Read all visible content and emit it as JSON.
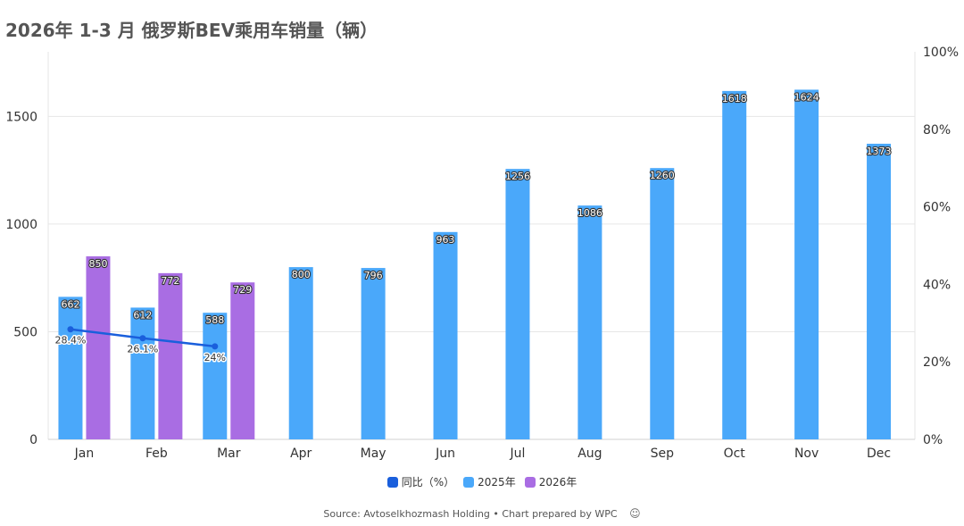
{
  "chart_data": {
    "type": "bar",
    "title": "2026年 1-3 月 俄罗斯BEV乘用车销量（辆）",
    "categories": [
      "Jan",
      "Feb",
      "Mar",
      "Apr",
      "May",
      "Jun",
      "Jul",
      "Aug",
      "Sep",
      "Oct",
      "Nov",
      "Dec"
    ],
    "y_ticks": [
      "0",
      "500",
      "1000",
      "1500"
    ],
    "y2_ticks": [
      "0%",
      "20%",
      "40%",
      "60%",
      "80%",
      "100%"
    ],
    "ylim": [
      0,
      1800
    ],
    "y2lim": [
      0,
      100
    ],
    "grid": true,
    "legend_position": "bottom-center",
    "series": [
      {
        "name": "同比（%）",
        "type": "line",
        "axis": "right",
        "color": "#1a5fdc",
        "values": [
          28.4,
          26.1,
          24,
          null,
          null,
          null,
          null,
          null,
          null,
          null,
          null,
          null
        ],
        "labels": [
          "28.4%",
          "26.1%",
          "24%",
          null,
          null,
          null,
          null,
          null,
          null,
          null,
          null,
          null
        ]
      },
      {
        "name": "2025年",
        "type": "bar",
        "axis": "left",
        "color": "#4aa8fa",
        "values": [
          662,
          612,
          588,
          800,
          796,
          963,
          1256,
          1086,
          1260,
          1618,
          1624,
          1373
        ],
        "labels": [
          "662",
          "612",
          "588",
          "800",
          "796",
          "963",
          "1256",
          "1086",
          "1260",
          "1618",
          "1624",
          "1373"
        ]
      },
      {
        "name": "2026年",
        "type": "bar",
        "axis": "left",
        "color": "#a96de3",
        "values": [
          850,
          772,
          729,
          null,
          null,
          null,
          null,
          null,
          null,
          null,
          null,
          null
        ],
        "labels": [
          "850",
          "772",
          "729",
          null,
          null,
          null,
          null,
          null,
          null,
          null,
          null,
          null
        ]
      }
    ]
  },
  "source_text": "Source: Avtoselkhozmash Holding • Chart prepared by WPC",
  "source_logo": "☺"
}
